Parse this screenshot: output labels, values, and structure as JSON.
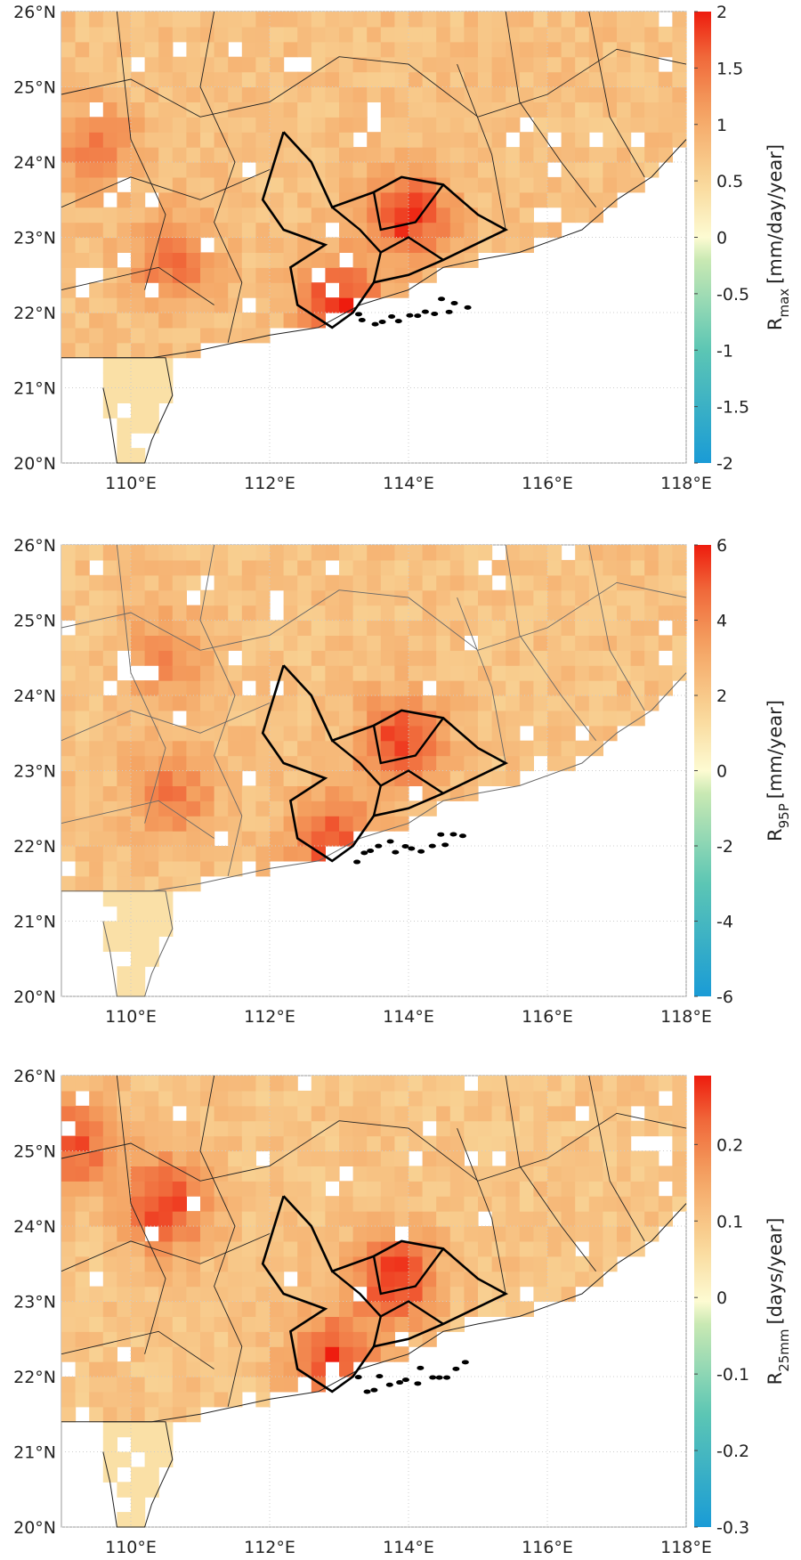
{
  "chart_data": [
    {
      "type": "heatmap",
      "title": "",
      "colorbar": {
        "symbol": "R",
        "subscript": "max",
        "unit": "[mm/day/year]",
        "range": [
          -2,
          2
        ],
        "ticks": [
          "-2",
          "-1.5",
          "-1",
          "-0.5",
          "0",
          "0.5",
          "1",
          "1.5",
          "2"
        ],
        "tick_values": [
          -2,
          -1.5,
          -1,
          -0.5,
          0,
          0.5,
          1,
          1.5,
          2
        ]
      },
      "lat_ticks": [
        "20°N",
        "21°N",
        "22°N",
        "23°N",
        "24°N",
        "25°N",
        "26°N"
      ],
      "lon_ticks": [
        "110°E",
        "112°E",
        "114°E",
        "116°E",
        "118°E"
      ],
      "xlim": [
        109,
        118
      ],
      "ylim": [
        20,
        26
      ],
      "hotspots": [
        {
          "lon": 114.0,
          "lat": 23.3,
          "value": 1.9
        },
        {
          "lon": 113.0,
          "lat": 22.1,
          "value": 1.9
        },
        {
          "lon": 110.6,
          "lat": 22.7,
          "value": 1.5
        },
        {
          "lon": 109.5,
          "lat": 24.2,
          "value": 1.4
        }
      ]
    },
    {
      "type": "heatmap",
      "title": "",
      "colorbar": {
        "symbol": "R",
        "subscript": "95P",
        "unit": "[mm/year]",
        "range": [
          -6,
          6
        ],
        "ticks": [
          "-6",
          "-4",
          "-2",
          "0",
          "2",
          "4",
          "6"
        ],
        "tick_values": [
          -6,
          -4,
          -2,
          0,
          2,
          4,
          6
        ]
      },
      "lat_ticks": [
        "20°N",
        "21°N",
        "22°N",
        "23°N",
        "24°N",
        "25°N",
        "26°N"
      ],
      "lon_ticks": [
        "110°E",
        "112°E",
        "114°E",
        "116°E",
        "118°E"
      ],
      "xlim": [
        109,
        118
      ],
      "ylim": [
        20,
        26
      ],
      "hotspots": [
        {
          "lon": 113.9,
          "lat": 23.4,
          "value": 5.5
        },
        {
          "lon": 112.9,
          "lat": 22.1,
          "value": 5.3
        },
        {
          "lon": 110.6,
          "lat": 22.7,
          "value": 4.3
        },
        {
          "lon": 110.5,
          "lat": 24.5,
          "value": 4.0
        }
      ]
    },
    {
      "type": "heatmap",
      "title": "",
      "colorbar": {
        "symbol": "R",
        "subscript": "25mm",
        "unit": "[days/year]",
        "range": [
          -0.3,
          0.29
        ],
        "ticks": [
          "-0.3",
          "-0.2",
          "-0.1",
          "0",
          "0.1",
          "0.2"
        ],
        "tick_values": [
          -0.3,
          -0.2,
          -0.1,
          0,
          0.1,
          0.2
        ]
      },
      "lat_ticks": [
        "20°N",
        "21°N",
        "22°N",
        "23°N",
        "24°N",
        "25°N",
        "26°N"
      ],
      "lon_ticks": [
        "110°E",
        "112°E",
        "114°E",
        "116°E",
        "118°E"
      ],
      "xlim": [
        109,
        118
      ],
      "ylim": [
        20,
        26
      ],
      "hotspots": [
        {
          "lon": 113.8,
          "lat": 23.3,
          "value": 0.28
        },
        {
          "lon": 112.9,
          "lat": 22.2,
          "value": 0.27
        },
        {
          "lon": 110.5,
          "lat": 24.3,
          "value": 0.27
        },
        {
          "lon": 109.2,
          "lat": 25.1,
          "value": 0.24
        }
      ]
    }
  ],
  "colors": {
    "min": "#1a9bd6",
    "mid": "#fdfbd2",
    "max": "#ee1c0e",
    "orange": "#f4a261"
  }
}
